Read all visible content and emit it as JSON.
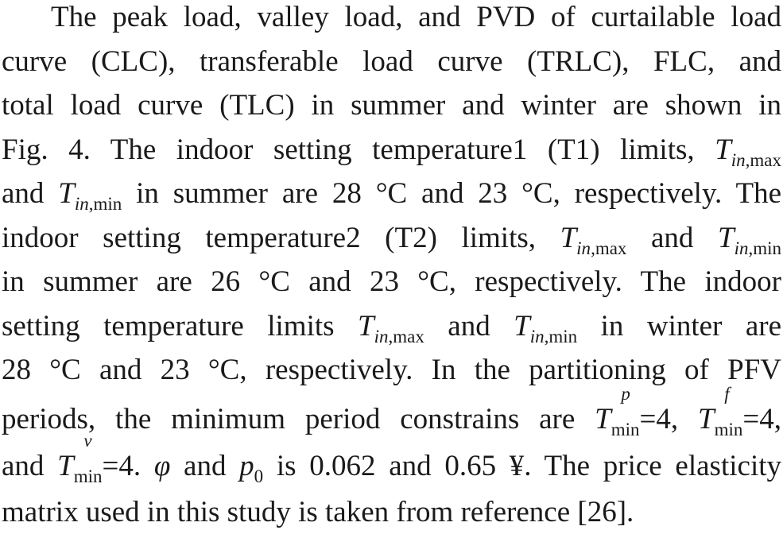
{
  "paragraph": {
    "l1": "The peak load, valley load, and PVD of curtailable load",
    "l2": "curve (CLC), transferable load curve (TRLC), FLC, and",
    "l3": "total load curve (TLC) in summer and winter are shown in",
    "l4_a": "Fig. 4. The indoor setting temperature1 (T1) limits,",
    "l5_b": "in summer are 28 °C and 23 °C, respectively. The",
    "l5_and": "and",
    "l6_a": "indoor setting temperature2 (T2) limits,",
    "l6_and": "and",
    "l7": "in summer are 26 °C and 23 °C, respectively. The indoor",
    "l8_a": "setting temperature limits",
    "l8_and": "and",
    "l8_b": "in winter are",
    "l9": "28 °C and 23 °C, respectively. In the partitioning of PFV",
    "l10_a": "periods, the minimum period constrains are",
    "l10_eq1": "=4,",
    "l10_eq2": "=4,",
    "l11_and": "and",
    "l11_eq3": "=4.",
    "l11_phi": "φ",
    "l11_and2": "and",
    "l11_p": "p",
    "l11_p_sub": "0",
    "l11_b": "is 0.062 and 0.65 ¥. The price elasticity",
    "l12": "matrix used in this study is taken from reference [26]."
  },
  "symbols": {
    "T": "T",
    "in": "in",
    "max": ",max",
    "min": ",min",
    "min_plain": "min",
    "sup_p": "p",
    "sup_f": "f",
    "sup_v": "v"
  }
}
